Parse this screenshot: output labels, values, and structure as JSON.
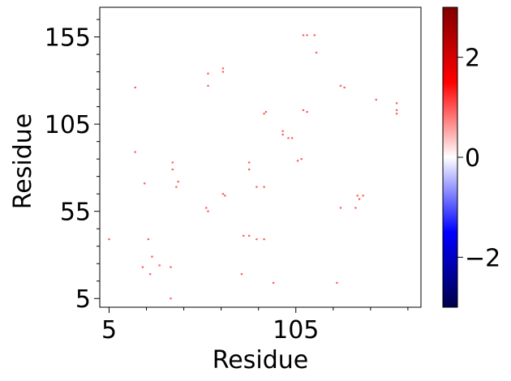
{
  "chart_data": {
    "type": "heatmap",
    "title": "",
    "xlabel": "Residue",
    "ylabel": "Residue",
    "xlim": [
      0,
      172
    ],
    "ylim": [
      0,
      172
    ],
    "xticks": [
      5,
      105
    ],
    "yticks": [
      5,
      55,
      105,
      155
    ],
    "x_tick_labels": [
      "5",
      "105"
    ],
    "y_tick_labels": [
      "5",
      "55",
      "105",
      "155"
    ],
    "grid": false,
    "colormap": "seismic",
    "colorbar": {
      "range": [
        -3,
        3
      ],
      "ticks": [
        -2,
        0,
        2
      ],
      "tick_labels": [
        "−2",
        "0",
        "2"
      ]
    },
    "cell_color": "#ff5a5a",
    "cell_value": 1.0,
    "points": [
      [
        5,
        39
      ],
      [
        19,
        89
      ],
      [
        19,
        126
      ],
      [
        23,
        23
      ],
      [
        24,
        71
      ],
      [
        26,
        39
      ],
      [
        27,
        19
      ],
      [
        28,
        29
      ],
      [
        32,
        24
      ],
      [
        38,
        23
      ],
      [
        38,
        5
      ],
      [
        39,
        83
      ],
      [
        39,
        79
      ],
      [
        41,
        69
      ],
      [
        42,
        72
      ],
      [
        57,
        57
      ],
      [
        58,
        55
      ],
      [
        58,
        127
      ],
      [
        58,
        134
      ],
      [
        66,
        65
      ],
      [
        66,
        135
      ],
      [
        66,
        137
      ],
      [
        67,
        64
      ],
      [
        76,
        19
      ],
      [
        77,
        41
      ],
      [
        80,
        41
      ],
      [
        80,
        79
      ],
      [
        80,
        83
      ],
      [
        84,
        39
      ],
      [
        84,
        69
      ],
      [
        88,
        69
      ],
      [
        88,
        39
      ],
      [
        88,
        111
      ],
      [
        89,
        112
      ],
      [
        93,
        14
      ],
      [
        98,
        99
      ],
      [
        98,
        101
      ],
      [
        101,
        97
      ],
      [
        103,
        97
      ],
      [
        106,
        84
      ],
      [
        108,
        85
      ],
      [
        109,
        113
      ],
      [
        109,
        156
      ],
      [
        111,
        112
      ],
      [
        111,
        156
      ],
      [
        115,
        156
      ],
      [
        116,
        146
      ],
      [
        127,
        14
      ],
      [
        129,
        57
      ],
      [
        129,
        127
      ],
      [
        131,
        126
      ],
      [
        137,
        57
      ],
      [
        138,
        64
      ],
      [
        139,
        62
      ],
      [
        141,
        64
      ],
      [
        148,
        119
      ],
      [
        159,
        117
      ],
      [
        159,
        113
      ],
      [
        159,
        111
      ]
    ]
  }
}
